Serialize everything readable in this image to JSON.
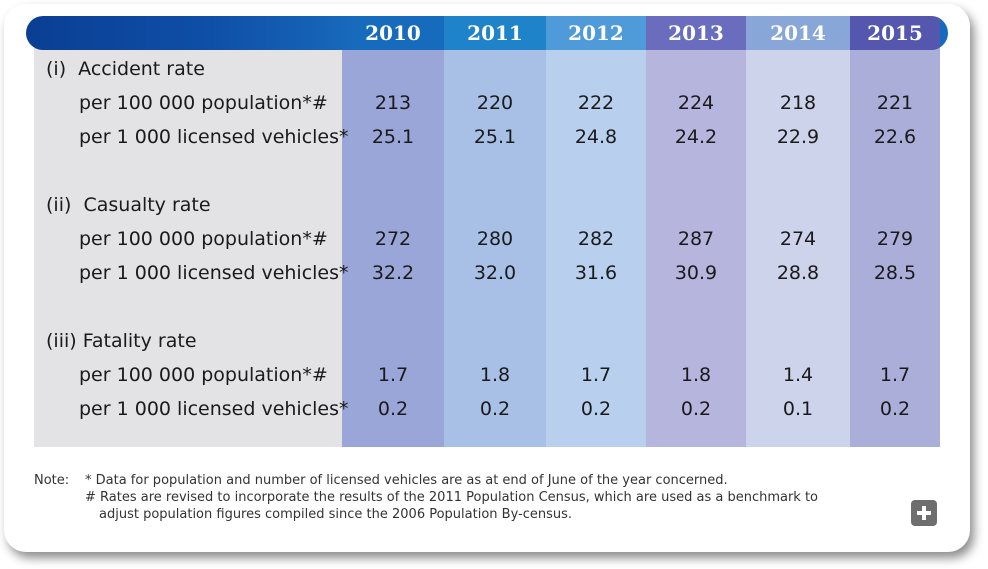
{
  "table": {
    "years": [
      "2010",
      "2011",
      "2012",
      "2013",
      "2014",
      "2015"
    ],
    "column_colors": [
      "#9aa6d8",
      "#a9c0e6",
      "#b8d0ee",
      "#b5b5de",
      "#cdd3ea",
      "#abaed9"
    ],
    "header_colors": [
      "#176bbd",
      "#1f83c9",
      "#4f9ad8",
      "#6a6cbd",
      "#88a7d8",
      "#5457ad"
    ],
    "sections": [
      {
        "title": "(i)  Accident rate",
        "rows": [
          {
            "label": "per 100 000 population*#",
            "values": [
              "213",
              "220",
              "222",
              "224",
              "218",
              "221"
            ]
          },
          {
            "label": "per 1 000 licensed vehicles*",
            "values": [
              "25.1",
              "25.1",
              "24.8",
              "24.2",
              "22.9",
              "22.6"
            ]
          }
        ]
      },
      {
        "title": "(ii)  Casualty rate",
        "rows": [
          {
            "label": "per 100 000 population*#",
            "values": [
              "272",
              "280",
              "282",
              "287",
              "274",
              "279"
            ]
          },
          {
            "label": "per 1 000 licensed vehicles*",
            "values": [
              "32.2",
              "32.0",
              "31.6",
              "30.9",
              "28.8",
              "28.5"
            ]
          }
        ]
      },
      {
        "title": "(iii) Fatality rate",
        "rows": [
          {
            "label": "per 100 000 population*#",
            "values": [
              "1.7",
              "1.8",
              "1.7",
              "1.8",
              "1.4",
              "1.7"
            ]
          },
          {
            "label": "per 1 000 licensed vehicles*",
            "values": [
              "0.2",
              "0.2",
              "0.2",
              "0.2",
              "0.1",
              "0.2"
            ]
          }
        ]
      }
    ]
  },
  "notes": {
    "prefix": "Note:",
    "line1": "*  Data for population and number of licensed vehicles are as at end of June of the year concerned.",
    "line2": "#  Rates are revised to incorporate the results of the 2011 Population Census, which are used as a benchmark to",
    "line3": "adjust population figures compiled since the 2006 Population By-census."
  },
  "expand_icon": "plus-icon"
}
